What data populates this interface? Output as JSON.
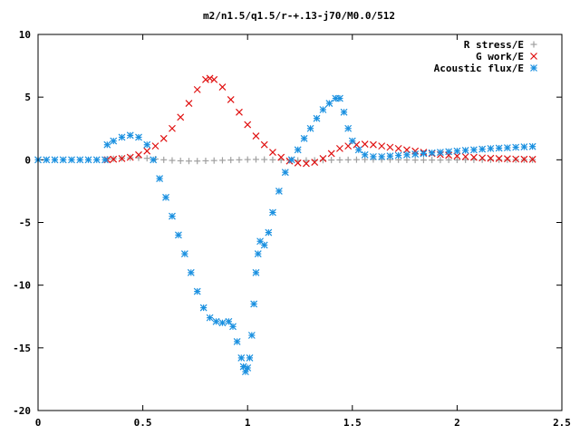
{
  "chart_data": {
    "type": "scatter",
    "title": "m2/n1.5/q1.5/r-+.13-j70/M0.0/512",
    "xlabel": "",
    "ylabel": "",
    "xlim": [
      0,
      2.5
    ],
    "ylim": [
      -20,
      10
    ],
    "x_ticks": [
      {
        "value": 0,
        "label": "0"
      },
      {
        "value": 0.5,
        "label": "0.5"
      },
      {
        "value": 1,
        "label": "1"
      },
      {
        "value": 1.5,
        "label": "1.5"
      },
      {
        "value": 2,
        "label": "2"
      },
      {
        "value": 2.5,
        "label": "2.5"
      }
    ],
    "y_ticks": [
      {
        "value": 10,
        "label": "10"
      },
      {
        "value": 5,
        "label": "5"
      },
      {
        "value": 0,
        "label": "0"
      },
      {
        "value": -5,
        "label": "-5"
      },
      {
        "value": -10,
        "label": "-10"
      },
      {
        "value": -15,
        "label": "-15"
      },
      {
        "value": -20,
        "label": "-20"
      }
    ],
    "grid": false,
    "legend_position": "top-right",
    "series": [
      {
        "name": "R stress/E",
        "marker": "plus",
        "color": "#a0a0a0",
        "points": [
          [
            0.33,
            0.05
          ],
          [
            0.36,
            0.08
          ],
          [
            0.4,
            0.12
          ],
          [
            0.44,
            0.16
          ],
          [
            0.48,
            0.16
          ],
          [
            0.52,
            0.12
          ],
          [
            0.56,
            0.06
          ],
          [
            0.6,
            0.0
          ],
          [
            0.64,
            -0.05
          ],
          [
            0.68,
            -0.08
          ],
          [
            0.72,
            -0.1
          ],
          [
            0.76,
            -0.1
          ],
          [
            0.8,
            -0.08
          ],
          [
            0.84,
            -0.06
          ],
          [
            0.88,
            -0.04
          ],
          [
            0.92,
            -0.02
          ],
          [
            0.96,
            0.0
          ],
          [
            1.0,
            0.02
          ],
          [
            1.04,
            0.03
          ],
          [
            1.08,
            0.02
          ],
          [
            1.12,
            0.0
          ],
          [
            1.16,
            -0.02
          ],
          [
            1.2,
            -0.04
          ],
          [
            1.24,
            -0.05
          ],
          [
            1.28,
            -0.05
          ],
          [
            1.32,
            -0.04
          ],
          [
            1.36,
            -0.03
          ],
          [
            1.4,
            -0.02
          ],
          [
            1.44,
            -0.01
          ],
          [
            1.48,
            0.0
          ],
          [
            1.52,
            0.01
          ],
          [
            1.56,
            0.02
          ],
          [
            1.6,
            0.02
          ],
          [
            1.64,
            0.02
          ],
          [
            1.68,
            0.01
          ],
          [
            1.72,
            0.0
          ],
          [
            1.76,
            -0.01
          ],
          [
            1.8,
            -0.02
          ],
          [
            1.84,
            -0.02
          ],
          [
            1.88,
            -0.02
          ],
          [
            1.92,
            -0.02
          ],
          [
            1.96,
            -0.01
          ],
          [
            2.0,
            -0.01
          ],
          [
            2.04,
            0.0
          ],
          [
            2.08,
            0.0
          ],
          [
            2.12,
            0.0
          ],
          [
            2.16,
            0.0
          ],
          [
            2.2,
            0.0
          ],
          [
            2.24,
            0.0
          ],
          [
            2.28,
            0.0
          ],
          [
            2.32,
            0.0
          ],
          [
            2.36,
            0.0
          ]
        ]
      },
      {
        "name": "G work/E",
        "marker": "cross",
        "color": "#e01010",
        "points": [
          [
            0.33,
            0.0
          ],
          [
            0.36,
            0.05
          ],
          [
            0.4,
            0.1
          ],
          [
            0.44,
            0.2
          ],
          [
            0.48,
            0.4
          ],
          [
            0.52,
            0.7
          ],
          [
            0.56,
            1.1
          ],
          [
            0.6,
            1.7
          ],
          [
            0.64,
            2.5
          ],
          [
            0.68,
            3.4
          ],
          [
            0.72,
            4.5
          ],
          [
            0.76,
            5.6
          ],
          [
            0.8,
            6.4
          ],
          [
            0.82,
            6.5
          ],
          [
            0.84,
            6.4
          ],
          [
            0.88,
            5.8
          ],
          [
            0.92,
            4.8
          ],
          [
            0.96,
            3.8
          ],
          [
            1.0,
            2.8
          ],
          [
            1.04,
            1.9
          ],
          [
            1.08,
            1.2
          ],
          [
            1.12,
            0.6
          ],
          [
            1.16,
            0.2
          ],
          [
            1.2,
            -0.1
          ],
          [
            1.24,
            -0.25
          ],
          [
            1.28,
            -0.3
          ],
          [
            1.32,
            -0.2
          ],
          [
            1.36,
            0.1
          ],
          [
            1.4,
            0.5
          ],
          [
            1.44,
            0.9
          ],
          [
            1.48,
            1.1
          ],
          [
            1.52,
            1.2
          ],
          [
            1.56,
            1.25
          ],
          [
            1.6,
            1.2
          ],
          [
            1.64,
            1.1
          ],
          [
            1.68,
            1.0
          ],
          [
            1.72,
            0.9
          ],
          [
            1.76,
            0.8
          ],
          [
            1.8,
            0.7
          ],
          [
            1.84,
            0.6
          ],
          [
            1.88,
            0.5
          ],
          [
            1.92,
            0.42
          ],
          [
            1.96,
            0.36
          ],
          [
            2.0,
            0.3
          ],
          [
            2.04,
            0.25
          ],
          [
            2.08,
            0.2
          ],
          [
            2.12,
            0.15
          ],
          [
            2.16,
            0.12
          ],
          [
            2.2,
            0.1
          ],
          [
            2.24,
            0.08
          ],
          [
            2.28,
            0.06
          ],
          [
            2.32,
            0.05
          ],
          [
            2.36,
            0.04
          ]
        ]
      },
      {
        "name": "Acoustic flux/E",
        "marker": "star",
        "color": "#1a90e0",
        "points": [
          [
            0.0,
            0.0
          ],
          [
            0.04,
            0.0
          ],
          [
            0.08,
            0.0
          ],
          [
            0.12,
            0.0
          ],
          [
            0.16,
            0.0
          ],
          [
            0.2,
            0.0
          ],
          [
            0.24,
            0.0
          ],
          [
            0.28,
            0.0
          ],
          [
            0.32,
            0.0
          ],
          [
            0.33,
            1.2
          ],
          [
            0.36,
            1.5
          ],
          [
            0.4,
            1.8
          ],
          [
            0.44,
            1.95
          ],
          [
            0.48,
            1.8
          ],
          [
            0.52,
            1.2
          ],
          [
            0.55,
            0.0
          ],
          [
            0.58,
            -1.5
          ],
          [
            0.61,
            -3.0
          ],
          [
            0.64,
            -4.5
          ],
          [
            0.67,
            -6.0
          ],
          [
            0.7,
            -7.5
          ],
          [
            0.73,
            -9.0
          ],
          [
            0.76,
            -10.5
          ],
          [
            0.79,
            -11.8
          ],
          [
            0.82,
            -12.6
          ],
          [
            0.85,
            -12.9
          ],
          [
            0.88,
            -13.0
          ],
          [
            0.91,
            -12.9
          ],
          [
            0.93,
            -13.3
          ],
          [
            0.95,
            -14.5
          ],
          [
            0.97,
            -15.8
          ],
          [
            0.98,
            -16.5
          ],
          [
            0.99,
            -16.9
          ],
          [
            1.0,
            -16.6
          ],
          [
            1.01,
            -15.8
          ],
          [
            1.02,
            -14.0
          ],
          [
            1.03,
            -11.5
          ],
          [
            1.04,
            -9.0
          ],
          [
            1.05,
            -7.5
          ],
          [
            1.06,
            -6.5
          ],
          [
            1.08,
            -6.8
          ],
          [
            1.1,
            -5.8
          ],
          [
            1.12,
            -4.2
          ],
          [
            1.15,
            -2.5
          ],
          [
            1.18,
            -1.0
          ],
          [
            1.21,
            0.0
          ],
          [
            1.24,
            0.8
          ],
          [
            1.27,
            1.7
          ],
          [
            1.3,
            2.5
          ],
          [
            1.33,
            3.3
          ],
          [
            1.36,
            4.0
          ],
          [
            1.39,
            4.5
          ],
          [
            1.42,
            4.9
          ],
          [
            1.44,
            4.9
          ],
          [
            1.46,
            3.8
          ],
          [
            1.48,
            2.5
          ],
          [
            1.5,
            1.5
          ],
          [
            1.53,
            0.8
          ],
          [
            1.56,
            0.4
          ],
          [
            1.6,
            0.25
          ],
          [
            1.64,
            0.25
          ],
          [
            1.68,
            0.3
          ],
          [
            1.72,
            0.35
          ],
          [
            1.76,
            0.4
          ],
          [
            1.8,
            0.45
          ],
          [
            1.84,
            0.5
          ],
          [
            1.88,
            0.55
          ],
          [
            1.92,
            0.6
          ],
          [
            1.96,
            0.65
          ],
          [
            2.0,
            0.7
          ],
          [
            2.04,
            0.75
          ],
          [
            2.08,
            0.8
          ],
          [
            2.12,
            0.85
          ],
          [
            2.16,
            0.9
          ],
          [
            2.2,
            0.93
          ],
          [
            2.24,
            0.96
          ],
          [
            2.28,
            1.0
          ],
          [
            2.32,
            1.03
          ],
          [
            2.36,
            1.06
          ]
        ]
      }
    ]
  }
}
